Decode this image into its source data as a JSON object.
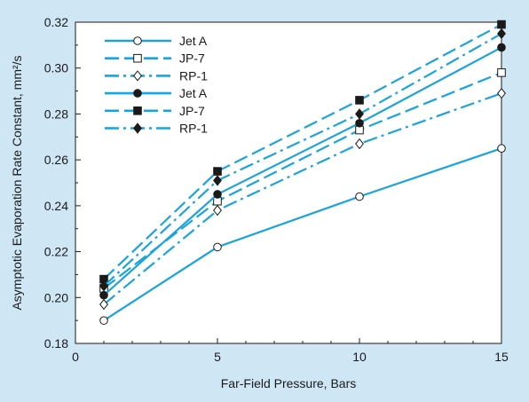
{
  "chart_data": {
    "type": "line",
    "xlabel": "Far-Field Pressure, Bars",
    "ylabel": "Asymptotic Evaporation Rate Constant, mm²/s",
    "xlim": [
      0,
      15
    ],
    "ylim": [
      0.18,
      0.32
    ],
    "x_ticks": [
      "0",
      "5",
      "10",
      "15"
    ],
    "y_ticks": [
      "0.18",
      "0.20",
      "0.22",
      "0.24",
      "0.26",
      "0.28",
      "0.30",
      "0.32"
    ],
    "grid": false,
    "legend_position": "top-left",
    "line_color": "#1aa3dd",
    "series": [
      {
        "name": "Jet A",
        "dash": "solid",
        "marker": "circle-open",
        "x": [
          1,
          5,
          10,
          15
        ],
        "y": [
          0.19,
          0.222,
          0.244,
          0.265
        ]
      },
      {
        "name": "JP-7",
        "dash": "dashed",
        "marker": "square-open",
        "x": [
          1,
          5,
          10,
          15
        ],
        "y": [
          0.204,
          0.242,
          0.273,
          0.298
        ]
      },
      {
        "name": "RP-1",
        "dash": "dashdot",
        "marker": "diamond-open",
        "x": [
          1,
          5,
          10,
          15
        ],
        "y": [
          0.197,
          0.238,
          0.267,
          0.289
        ]
      },
      {
        "name": "Jet A",
        "dash": "solid",
        "marker": "circle-filled",
        "x": [
          1,
          5,
          10,
          15
        ],
        "y": [
          0.201,
          0.245,
          0.276,
          0.309
        ]
      },
      {
        "name": "JP-7",
        "dash": "dashed",
        "marker": "square-filled",
        "x": [
          1,
          5,
          10,
          15
        ],
        "y": [
          0.208,
          0.255,
          0.286,
          0.319
        ]
      },
      {
        "name": "RP-1",
        "dash": "dashdot",
        "marker": "diamond-filled",
        "x": [
          1,
          5,
          10,
          15
        ],
        "y": [
          0.205,
          0.251,
          0.28,
          0.315
        ]
      }
    ]
  }
}
